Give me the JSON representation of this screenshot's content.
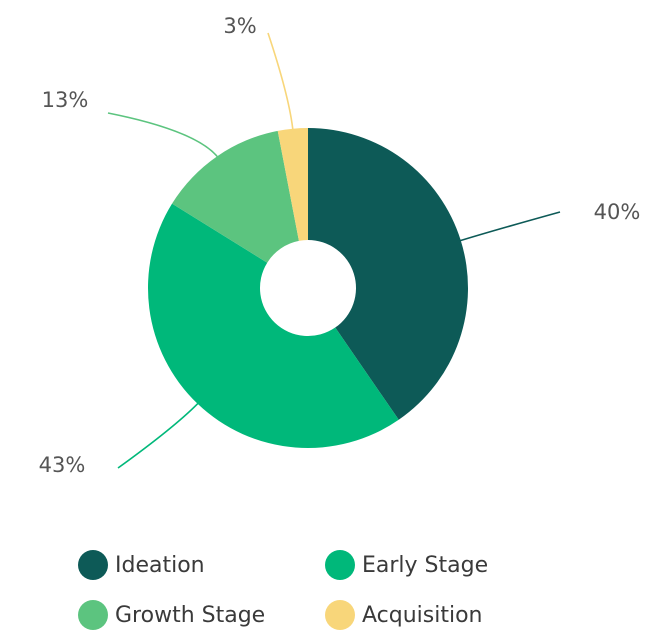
{
  "chart_data": {
    "type": "donut",
    "categories": [
      "Ideation",
      "Early Stage",
      "Growth Stage",
      "Acquisition"
    ],
    "values": [
      40,
      43,
      13,
      3
    ],
    "value_labels": [
      "40%",
      "43%",
      "13%",
      "3%"
    ],
    "colors": [
      "#0d5a57",
      "#00b87a",
      "#5cc47f",
      "#f8d67a"
    ],
    "legend": "bottom"
  }
}
